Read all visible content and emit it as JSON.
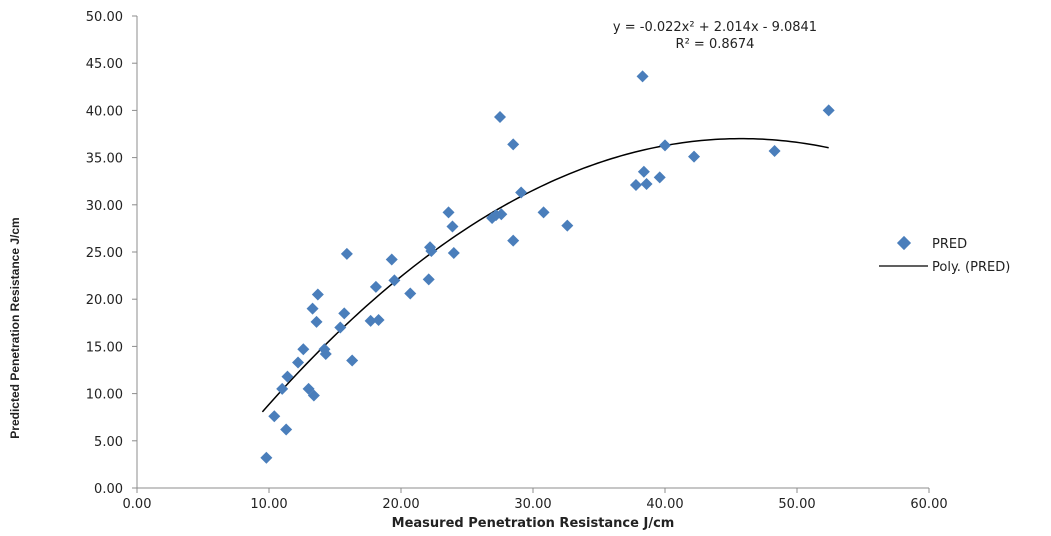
{
  "chart_data": {
    "type": "scatter",
    "title": "",
    "xlabel": "Measured Penetration Resistance  J/cm",
    "ylabel": "Predicted Penetration Resistance  J/cm",
    "xlim": [
      0,
      60
    ],
    "ylim": [
      0,
      50
    ],
    "x_ticks": [
      0,
      10,
      20,
      30,
      40,
      50,
      60
    ],
    "y_ticks": [
      0,
      5,
      10,
      15,
      20,
      25,
      30,
      35,
      40,
      45,
      50
    ],
    "x_tick_labels": [
      "0.00",
      "10.00",
      "20.00",
      "30.00",
      "40.00",
      "50.00",
      "60.00"
    ],
    "y_tick_labels": [
      "0.00",
      "5.00",
      "10.00",
      "15.00",
      "20.00",
      "25.00",
      "30.00",
      "35.00",
      "40.00",
      "45.00",
      "50.00"
    ],
    "grid": false,
    "legend_position": "right",
    "series": [
      {
        "name": "PRED",
        "marker": "diamond",
        "color": "#4a7ebb",
        "points": [
          [
            9.8,
            3.2
          ],
          [
            10.4,
            7.6
          ],
          [
            11.0,
            10.5
          ],
          [
            11.3,
            6.2
          ],
          [
            11.4,
            11.8
          ],
          [
            12.2,
            13.3
          ],
          [
            12.6,
            14.7
          ],
          [
            13.0,
            10.5
          ],
          [
            13.3,
            19.0
          ],
          [
            13.4,
            9.8
          ],
          [
            13.6,
            17.6
          ],
          [
            13.7,
            20.5
          ],
          [
            14.2,
            14.7
          ],
          [
            14.3,
            14.2
          ],
          [
            15.4,
            17.0
          ],
          [
            15.7,
            18.5
          ],
          [
            15.9,
            24.8
          ],
          [
            16.3,
            13.5
          ],
          [
            17.7,
            17.7
          ],
          [
            18.1,
            21.3
          ],
          [
            18.3,
            17.8
          ],
          [
            19.3,
            24.2
          ],
          [
            19.5,
            22.0
          ],
          [
            20.7,
            20.6
          ],
          [
            22.1,
            22.1
          ],
          [
            22.2,
            25.5
          ],
          [
            22.3,
            25.1
          ],
          [
            23.6,
            29.2
          ],
          [
            23.9,
            27.7
          ],
          [
            24.0,
            24.9
          ],
          [
            26.9,
            28.6
          ],
          [
            27.2,
            28.9
          ],
          [
            27.5,
            39.3
          ],
          [
            27.6,
            29.0
          ],
          [
            28.5,
            36.4
          ],
          [
            28.5,
            26.2
          ],
          [
            29.1,
            31.3
          ],
          [
            30.8,
            29.2
          ],
          [
            32.6,
            27.8
          ],
          [
            37.8,
            32.1
          ],
          [
            38.3,
            43.6
          ],
          [
            38.4,
            33.5
          ],
          [
            38.6,
            32.2
          ],
          [
            39.6,
            32.9
          ],
          [
            40.0,
            36.3
          ],
          [
            42.2,
            35.1
          ],
          [
            48.3,
            35.7
          ],
          [
            52.4,
            40.0
          ]
        ]
      }
    ],
    "trendline": {
      "name": "Poly. (PRED)",
      "type": "polynomial",
      "order": 2,
      "coefficients": [
        -0.022,
        2.014,
        -9.0841
      ],
      "x_range": [
        9.5,
        52.4
      ],
      "color": "#000000"
    },
    "annotations": {
      "equation": "y = -0.022x² + 2.014x - 9.0841",
      "r_squared": "R² = 0.8674"
    }
  }
}
